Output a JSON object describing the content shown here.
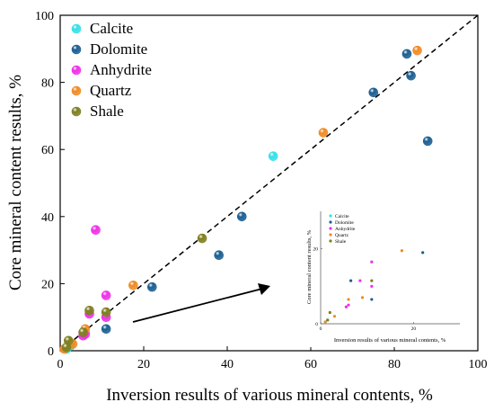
{
  "chart_data": [
    {
      "type": "scatter",
      "title": "",
      "xlabel": "Inversion results of various mineral contents, %",
      "ylabel": "Core mineral content results, %",
      "xlim": [
        0,
        100
      ],
      "ylim": [
        0,
        100
      ],
      "xticks": [
        "0",
        "20",
        "40",
        "60",
        "80",
        "100"
      ],
      "yticks": [
        "0",
        "20",
        "40",
        "60",
        "80",
        "100"
      ],
      "reference_line": {
        "style": "dashed",
        "color": "#000000",
        "from": [
          0,
          0
        ],
        "to": [
          100,
          100
        ]
      },
      "legend_position": "top-left",
      "grid": false,
      "series": [
        {
          "name": "Calcite",
          "color": "#33e0e8",
          "x": [
            51,
            1.5,
            2.5
          ],
          "y": [
            58,
            0.5,
            1.5
          ]
        },
        {
          "name": "Dolomite",
          "color": "#1a5e91",
          "x": [
            88,
            84,
            83,
            75,
            43.5,
            38,
            22,
            11
          ],
          "y": [
            62.5,
            82,
            88.5,
            77,
            40,
            28.5,
            19,
            6.5
          ]
        },
        {
          "name": "Anhydrite",
          "color": "#ef2fe8",
          "x": [
            8.5,
            11,
            11,
            6,
            5.5,
            7
          ],
          "y": [
            36,
            16.5,
            10,
            5,
            4.5,
            11
          ]
        },
        {
          "name": "Quartz",
          "color": "#f08a24",
          "x": [
            85.5,
            63,
            17.5,
            6,
            3,
            1
          ],
          "y": [
            89.5,
            65,
            19.5,
            6.5,
            2,
            0.5
          ]
        },
        {
          "name": "Shale",
          "color": "#7e7f1e",
          "x": [
            34,
            7,
            11,
            2,
            1.5,
            5.5
          ],
          "y": [
            33.5,
            12,
            11.5,
            3,
            1,
            5.5
          ]
        }
      ]
    },
    {
      "type": "scatter",
      "title": "",
      "xlabel": "Inversion results of various mineral contents, %",
      "ylabel": "Core mineral content results, %",
      "xlim": [
        0,
        30
      ],
      "ylim": [
        0,
        30
      ],
      "xticks": [
        "0",
        "20"
      ],
      "yticks": [
        "0",
        "20"
      ],
      "legend_position": "top-left",
      "series": [
        {
          "name": "Calcite",
          "color": "#33e0e8",
          "x": [
            1,
            1.5
          ],
          "y": [
            0.5,
            1
          ]
        },
        {
          "name": "Dolomite",
          "color": "#1a5e91",
          "x": [
            22,
            11,
            6.5
          ],
          "y": [
            19,
            6.5,
            11.5
          ]
        },
        {
          "name": "Anhydrite",
          "color": "#ef2fe8",
          "x": [
            8.5,
            11,
            11,
            6,
            5.5
          ],
          "y": [
            11.5,
            16.5,
            10,
            5,
            4.5
          ]
        },
        {
          "name": "Quartz",
          "color": "#f08a24",
          "x": [
            17.5,
            9,
            6,
            3,
            1
          ],
          "y": [
            19.5,
            7,
            6.5,
            2,
            0.5
          ]
        },
        {
          "name": "Shale",
          "color": "#7e7f1e",
          "x": [
            11,
            2,
            1.5
          ],
          "y": [
            11.5,
            3,
            1
          ]
        }
      ]
    }
  ]
}
